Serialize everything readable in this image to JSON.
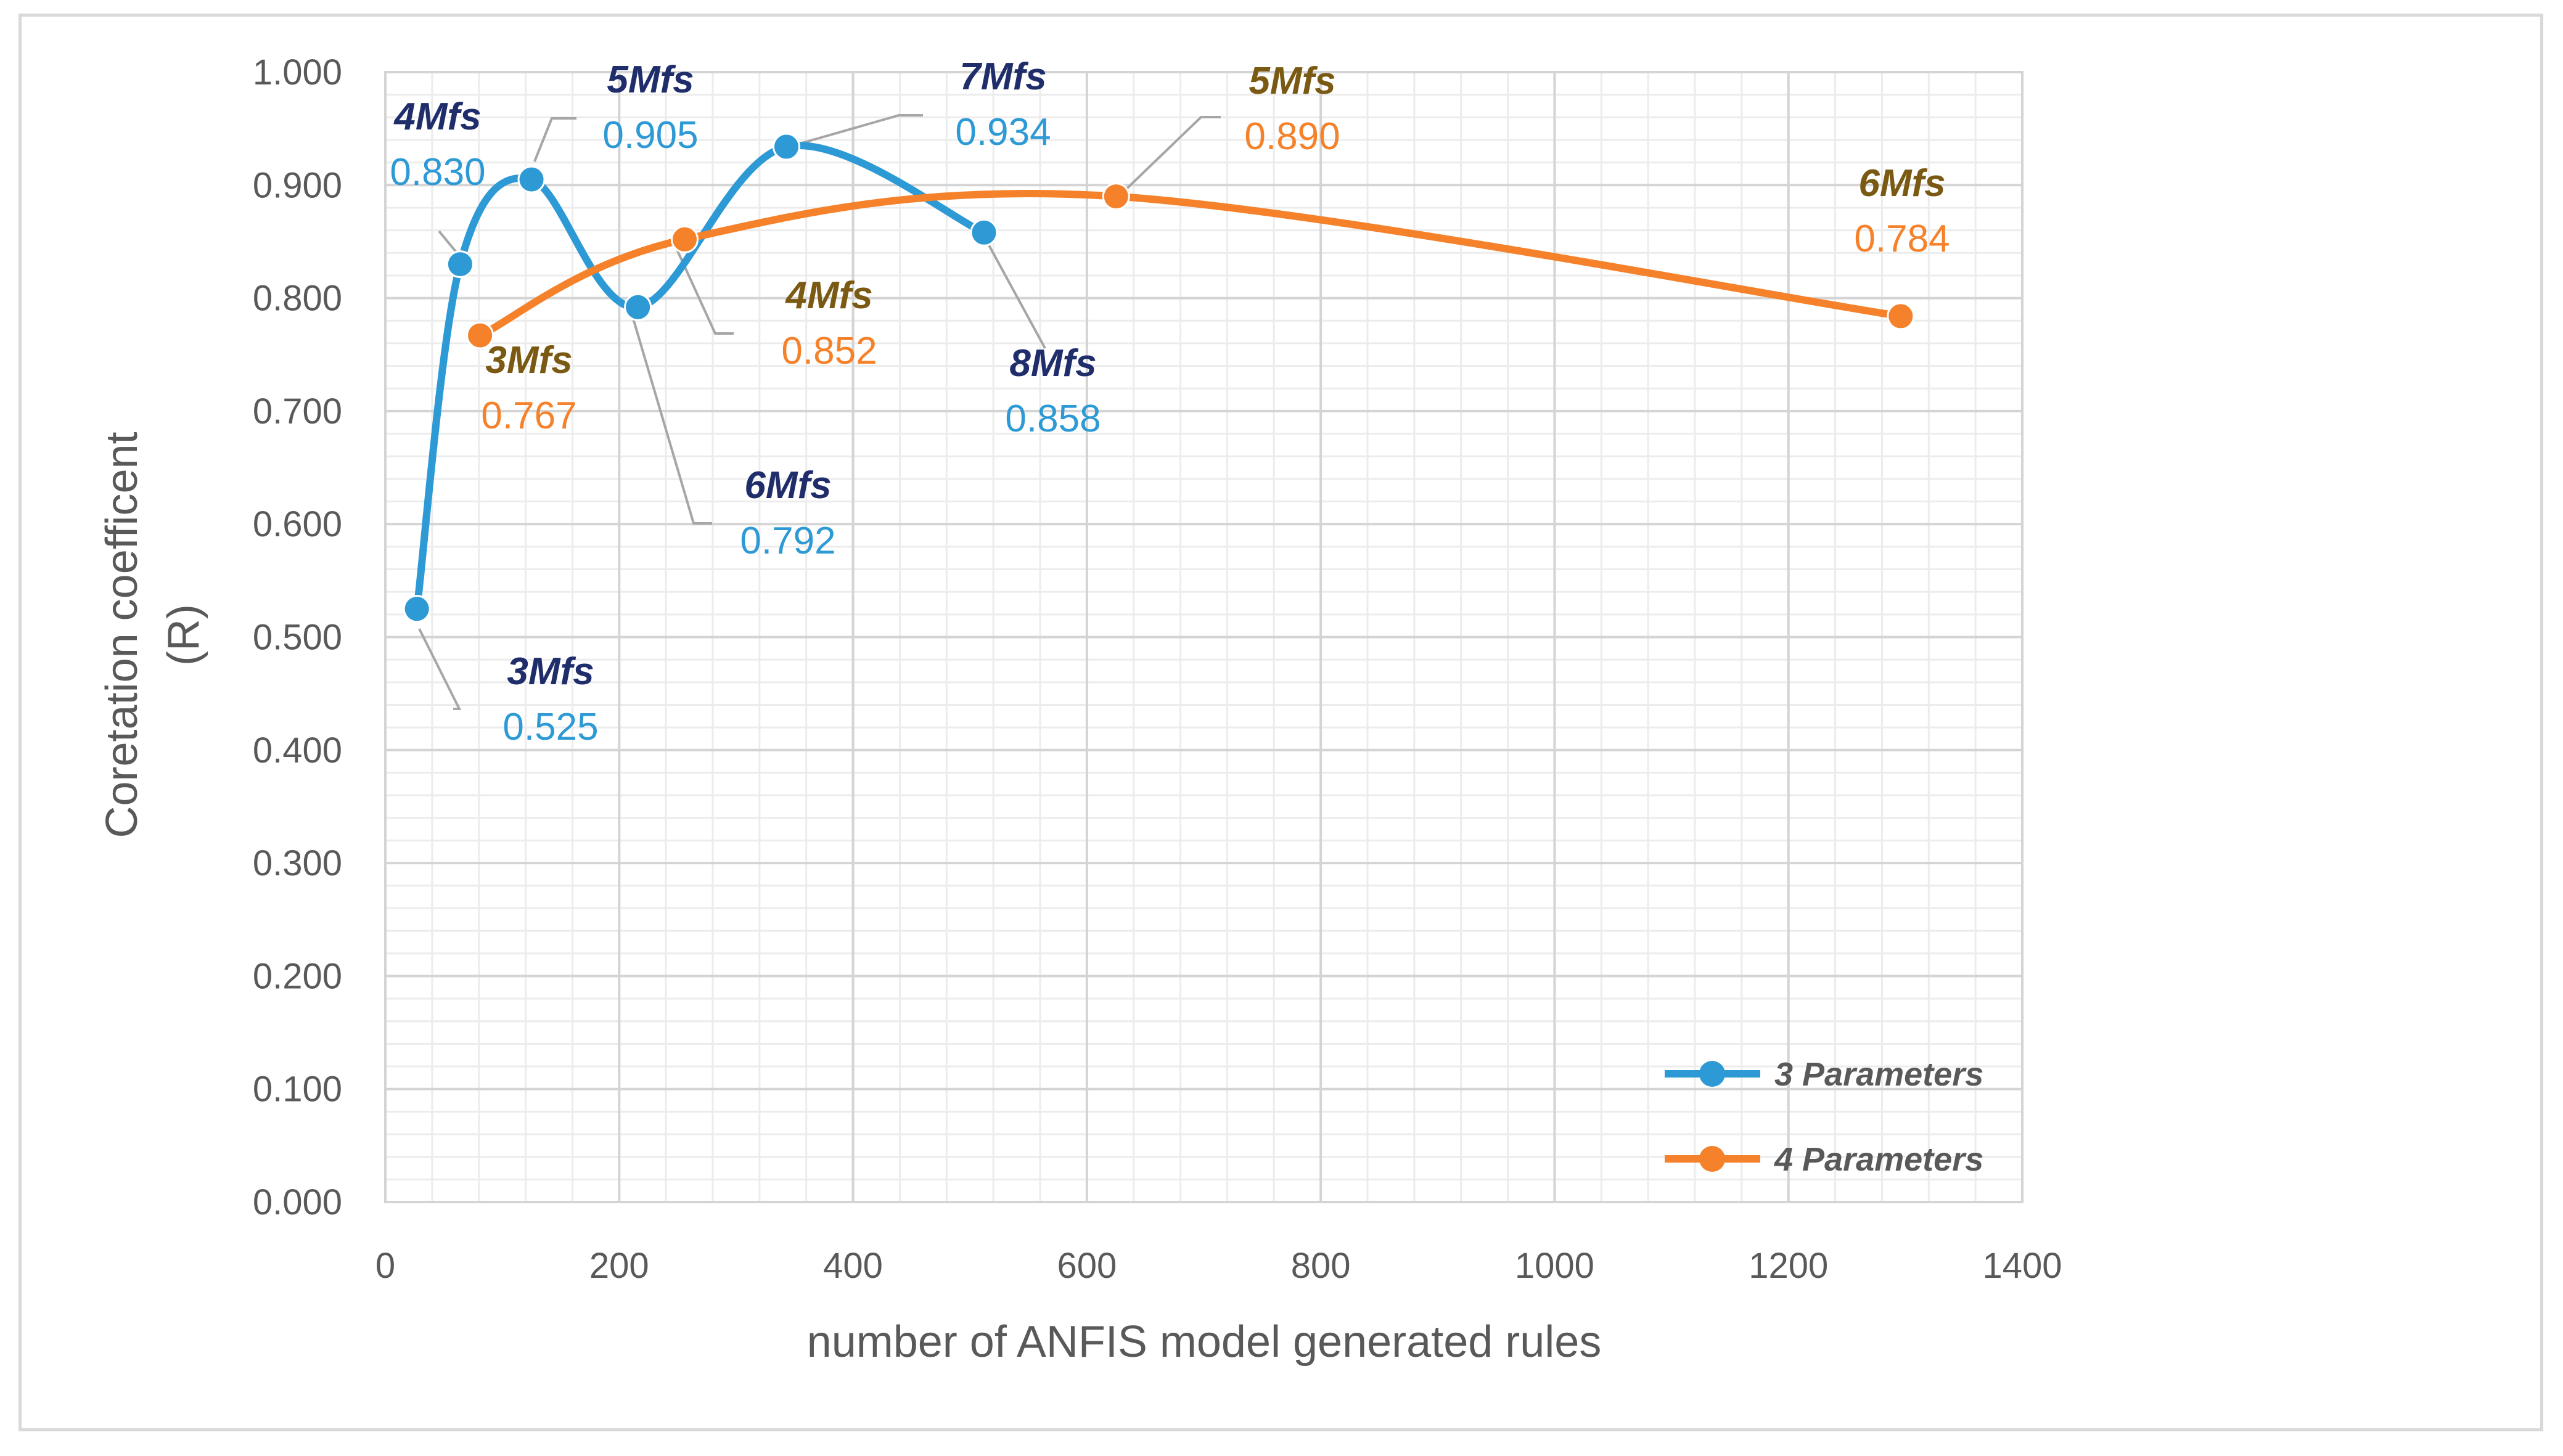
{
  "chart_data": {
    "type": "line",
    "title": "",
    "xlabel": "number of ANFIS model generated rules",
    "ylabel_lines": [
      "Coretation coefficent",
      "(R)"
    ],
    "xlim": [
      0,
      1400
    ],
    "ylim": [
      0,
      1
    ],
    "x_ticks": [
      "0",
      "200",
      "400",
      "600",
      "800",
      "1000",
      "1200",
      "1400"
    ],
    "y_ticks": [
      "0.000",
      "0.100",
      "0.200",
      "0.300",
      "0.400",
      "0.500",
      "0.600",
      "0.700",
      "0.800",
      "0.900",
      "1.000"
    ],
    "legend_position": "bottom-right",
    "series": [
      {
        "name": "3 Parameters",
        "color": "#2e9ad5",
        "name_color": "#1f2d6b",
        "value_color": "#2e9ad5",
        "points": [
          {
            "x": 27,
            "y": 0.525,
            "mfs": "3Mfs",
            "value": "0.525"
          },
          {
            "x": 64,
            "y": 0.83,
            "mfs": "4Mfs",
            "value": "0.830"
          },
          {
            "x": 125,
            "y": 0.905,
            "mfs": "5Mfs",
            "value": "0.905"
          },
          {
            "x": 216,
            "y": 0.792,
            "mfs": "6Mfs",
            "value": "0.792"
          },
          {
            "x": 343,
            "y": 0.934,
            "mfs": "7Mfs",
            "value": "0.934"
          },
          {
            "x": 512,
            "y": 0.858,
            "mfs": "8Mfs",
            "value": "0.858"
          }
        ]
      },
      {
        "name": "4 Parameters",
        "color": "#f5812a",
        "name_color": "#7a5a12",
        "value_color": "#f5812a",
        "points": [
          {
            "x": 81,
            "y": 0.767,
            "mfs": "3Mfs",
            "value": "0.767"
          },
          {
            "x": 256,
            "y": 0.852,
            "mfs": "4Mfs",
            "value": "0.852"
          },
          {
            "x": 625,
            "y": 0.89,
            "mfs": "5Mfs",
            "value": "0.890"
          },
          {
            "x": 1296,
            "y": 0.784,
            "mfs": "6Mfs",
            "value": "0.784"
          }
        ]
      }
    ]
  }
}
